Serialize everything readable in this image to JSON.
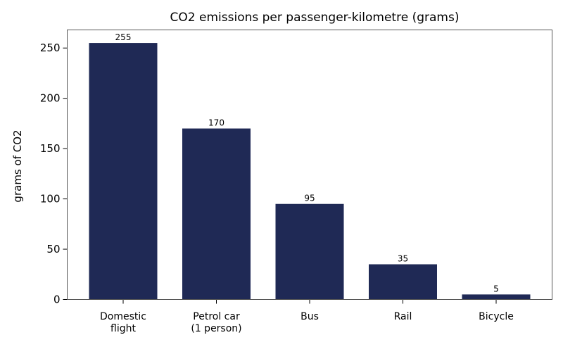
{
  "chart_data": {
    "type": "bar",
    "title": "CO2 emissions per passenger-kilometre (grams)",
    "xlabel": "",
    "ylabel": "grams of CO2",
    "categories": [
      [
        "Domestic",
        "flight"
      ],
      [
        "Petrol car",
        "(1 person)"
      ],
      [
        "Bus"
      ],
      [
        "Rail"
      ],
      [
        "Bicycle"
      ]
    ],
    "values": [
      255,
      170,
      95,
      35,
      5
    ],
    "data_labels": [
      "255",
      "170",
      "95",
      "35",
      "5"
    ],
    "ylim": [
      0,
      268
    ],
    "yticks": [
      0,
      50,
      100,
      150,
      200,
      250
    ],
    "ytick_labels": [
      "0",
      "50",
      "100",
      "150",
      "200",
      "250"
    ],
    "bar_color": "#1f2955",
    "grid": false,
    "legend": "none"
  }
}
